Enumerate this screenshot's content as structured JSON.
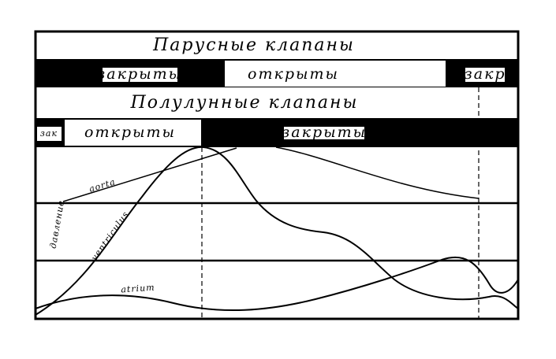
{
  "rows": {
    "atrioventricular": {
      "title": "Парусные клапаны",
      "closed_start": "закрыты",
      "open": "открыты",
      "closed_end": "закр"
    },
    "semilunar": {
      "title": "Полулунные клапаны",
      "closed_start": "зак",
      "open": "открыты",
      "closed": "закрыты"
    }
  },
  "curves": {
    "aorta": "aorta",
    "ventricle": "ventriculus",
    "atrium": "atrium"
  },
  "axis_label": "давление"
}
